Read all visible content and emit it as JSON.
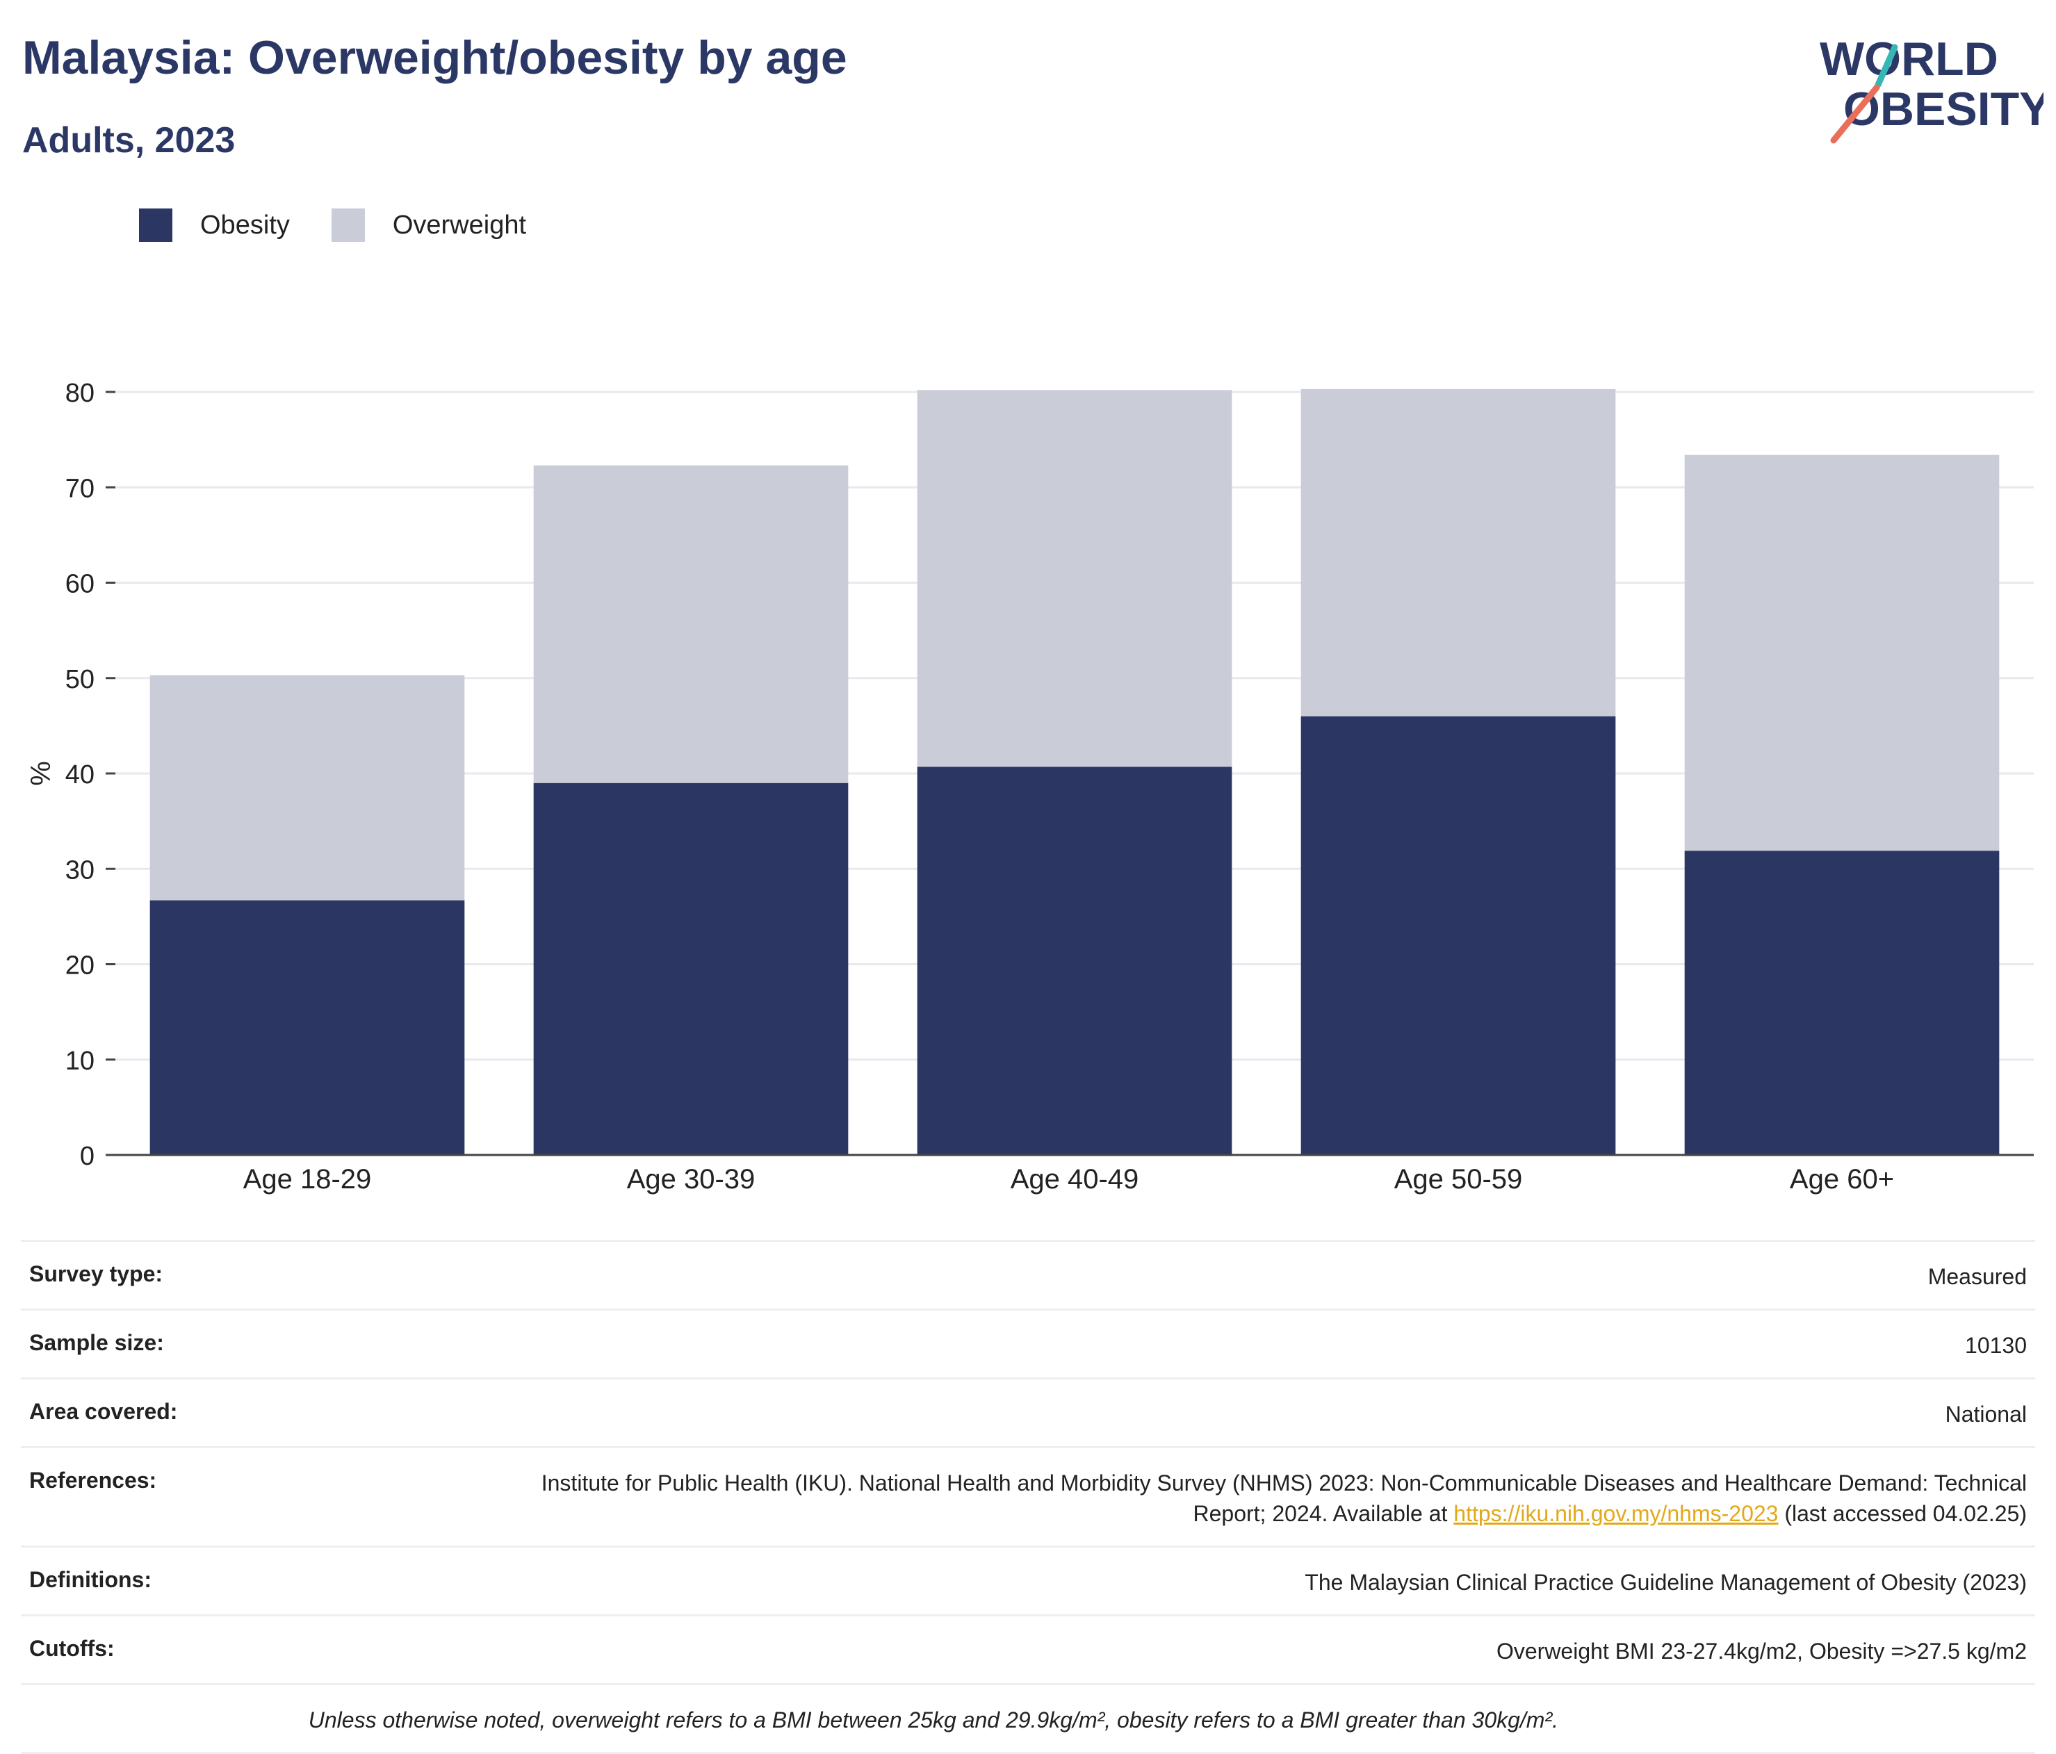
{
  "header": {
    "title": "Malaysia: Overweight/obesity by age",
    "subtitle": "Adults, 2023",
    "logo_line1": "WORLD",
    "logo_line2": "OBESITY"
  },
  "legend": {
    "obesity": "Obesity",
    "overweight": "Overweight"
  },
  "colors": {
    "obesity": "#2b3663",
    "overweight": "#cacdd8",
    "title": "#2b3866",
    "logo_teal": "#37b6b6",
    "logo_coral": "#ea6f5a",
    "link": "#e3a81a"
  },
  "chart_data": {
    "type": "bar",
    "stacked": true,
    "categories": [
      "Age 18-29",
      "Age 30-39",
      "Age 40-49",
      "Age 50-59",
      "Age 60+"
    ],
    "series": [
      {
        "name": "Obesity",
        "values": [
          26.7,
          39.0,
          40.7,
          46.0,
          31.9
        ]
      },
      {
        "name": "Overweight",
        "values": [
          23.6,
          33.3,
          39.5,
          34.3,
          41.5
        ]
      }
    ],
    "title": "Malaysia: Overweight/obesity by age",
    "subtitle": "Adults, 2023",
    "xlabel": "",
    "ylabel": "%",
    "ylim": [
      0,
      80
    ],
    "yticks": [
      0,
      10,
      20,
      30,
      40,
      50,
      60,
      70,
      80
    ],
    "grid": true,
    "legend_position": "top-left"
  },
  "meta": {
    "survey_type": {
      "label": "Survey type:",
      "value": "Measured"
    },
    "sample_size": {
      "label": "Sample size:",
      "value": "10130"
    },
    "area_covered": {
      "label": "Area covered:",
      "value": "National"
    },
    "references": {
      "label": "References:",
      "text_before": "Institute for Public Health (IKU). National Health and Morbidity Survey (NHMS) 2023: Non-Communicable Diseases and Healthcare Demand: Technical Report; 2024. Available at ",
      "link": "https://iku.nih.gov.my/nhms-2023",
      "text_after": " (last accessed 04.02.25)"
    },
    "definitions": {
      "label": "Definitions:",
      "value": "The Malaysian Clinical Practice Guideline Management of Obesity (2023)"
    },
    "cutoffs": {
      "label": "Cutoffs:",
      "value": "Overweight BMI 23-27.4kg/m2, Obesity =>27.5 kg/m2"
    },
    "footnote": "Unless otherwise noted, overweight refers to a BMI between 25kg and 29.9kg/m², obesity refers to a BMI greater than 30kg/m²."
  }
}
